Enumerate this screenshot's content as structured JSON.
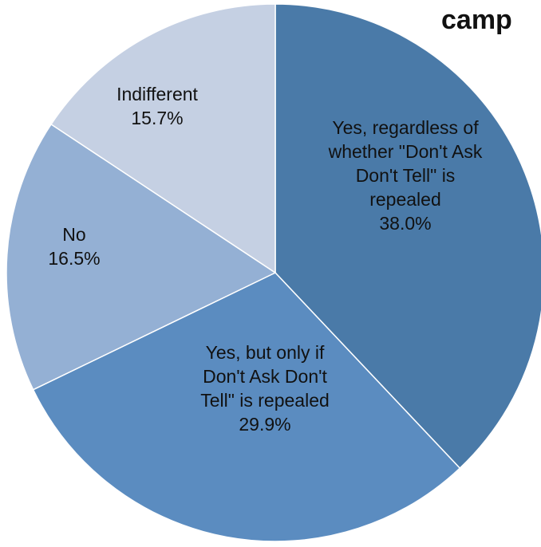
{
  "chart_data": {
    "type": "pie",
    "title": "camp",
    "legend": "none",
    "slices": [
      {
        "category": "Yes, regardless of whether \"Don't Ask Don't Tell\" is repealed",
        "value": 38.0,
        "value_label": "38.0%",
        "label_lines": [
          "Yes, regardless of",
          "whether \"Don't Ask",
          "Don't Tell\" is",
          "repealed"
        ],
        "color": "#4a7aa8"
      },
      {
        "category": "Yes, but only if Don't Ask Don't Tell\" is repealed",
        "value": 29.9,
        "value_label": "29.9%",
        "label_lines": [
          "Yes, but only if",
          "Don't Ask Don't",
          "Tell\" is repealed"
        ],
        "color": "#5b8cc0"
      },
      {
        "category": "No",
        "value": 16.5,
        "value_label": "16.5%",
        "label_lines": [
          "No"
        ],
        "color": "#94b0d4"
      },
      {
        "category": "Indifferent",
        "value": 15.7,
        "value_label": "15.7%",
        "label_lines": [
          "Indifferent"
        ],
        "color": "#c5d0e3"
      }
    ]
  }
}
